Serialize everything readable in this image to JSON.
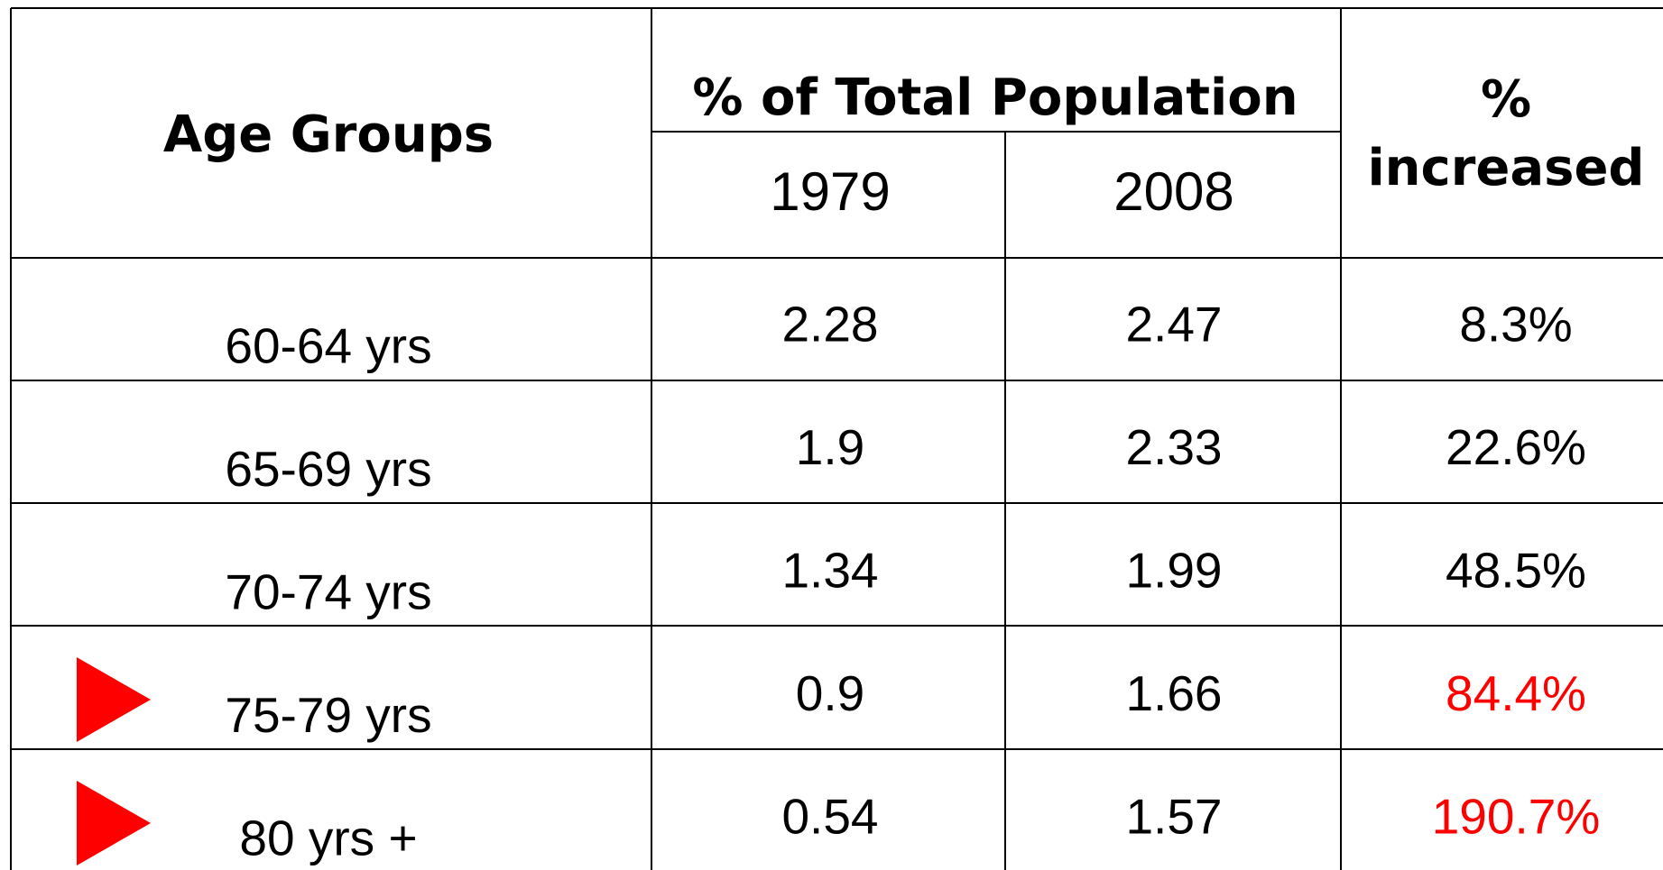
{
  "table": {
    "header": {
      "age_groups": "Age Groups",
      "population": "% of Total Population",
      "years": [
        "1979",
        "2008"
      ],
      "increase": [
        "%",
        "increased"
      ]
    },
    "rows": [
      [
        "60-64 yrs",
        "2.28",
        "2.47",
        "8.3%"
      ],
      [
        "65-69 yrs",
        "1.9",
        "2.33",
        "22.6%"
      ],
      [
        "70-74 yrs",
        "1.34",
        "1.99",
        "48.5%"
      ],
      [
        "75-79 yrs",
        "0.9",
        "1.66",
        "84.4%"
      ],
      [
        "80 yrs +",
        "0.54",
        "1.57",
        "190.7%"
      ]
    ]
  }
}
